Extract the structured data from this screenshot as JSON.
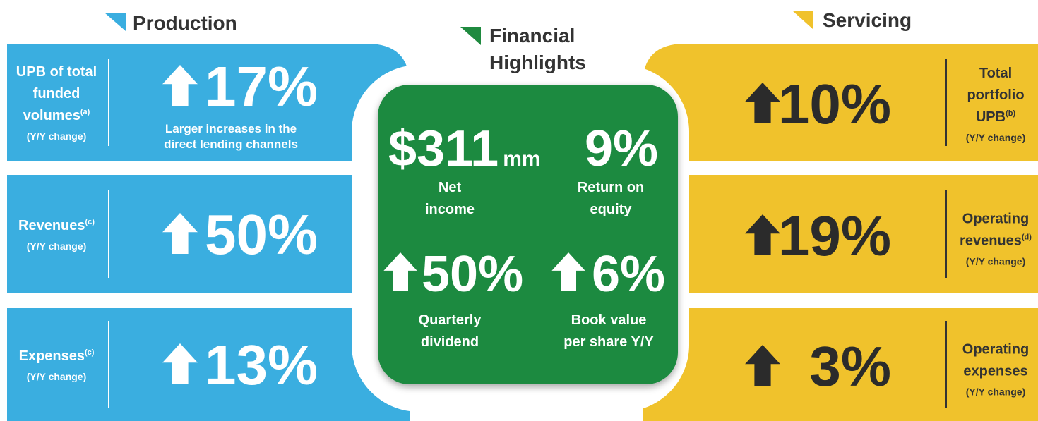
{
  "production": {
    "title": "Production",
    "rows": [
      {
        "label_lines": [
          "UPB of total",
          "funded",
          "volumes"
        ],
        "sup": "(a)",
        "sub": "(Y/Y change)",
        "value": "17%",
        "note_lines": [
          "Larger increases in the",
          "direct lending channels"
        ]
      },
      {
        "label_lines": [
          "Revenues"
        ],
        "sup": "(c)",
        "sub": "(Y/Y change)",
        "value": "50%"
      },
      {
        "label_lines": [
          "Expenses"
        ],
        "sup": "(c)",
        "sub": "(Y/Y change)",
        "value": "13%"
      }
    ]
  },
  "financial": {
    "title_lines": [
      "Financial",
      "Highlights"
    ],
    "items": [
      {
        "value": "$311",
        "unit": "mm",
        "label_lines": [
          "Net",
          "income"
        ]
      },
      {
        "value": "9%",
        "label_lines": [
          "Return on",
          "equity"
        ]
      },
      {
        "value": "50%",
        "label_lines": [
          "Quarterly",
          "dividend"
        ]
      },
      {
        "value": "6%",
        "label_lines": [
          "Book value",
          "per share Y/Y"
        ]
      }
    ]
  },
  "servicing": {
    "title": "Servicing",
    "rows": [
      {
        "label_lines": [
          "Total",
          "portfolio",
          "UPB"
        ],
        "sup": "(b)",
        "sub": "(Y/Y change)",
        "value": "10%"
      },
      {
        "label_lines": [
          "Operating",
          "revenues"
        ],
        "sup": "(d)",
        "sub": "(Y/Y change)",
        "value": "19%"
      },
      {
        "label_lines": [
          "Operating",
          "expenses"
        ],
        "sub": "(Y/Y change)",
        "value": "3%"
      }
    ]
  }
}
